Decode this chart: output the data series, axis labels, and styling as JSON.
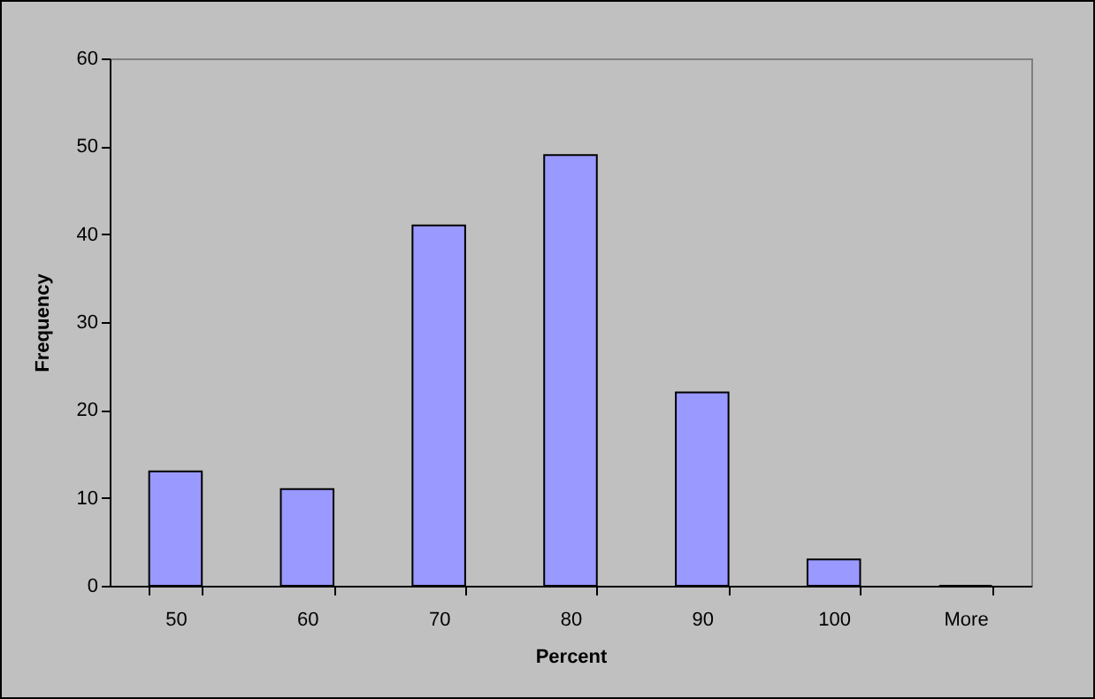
{
  "chart_data": {
    "type": "bar",
    "xlabel": "Percent",
    "ylabel": "Frequency",
    "categories": [
      "50",
      "60",
      "70",
      "80",
      "90",
      "100",
      "More"
    ],
    "values": [
      13,
      11,
      41,
      49,
      22,
      3,
      0
    ],
    "color": "#9999ff",
    "ylim": [
      0,
      60
    ],
    "yticks": [
      0,
      10,
      20,
      30,
      40,
      50,
      60
    ],
    "grid": false
  }
}
